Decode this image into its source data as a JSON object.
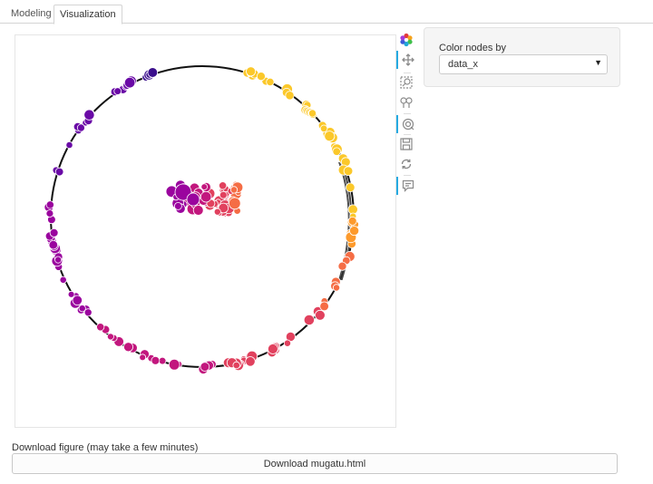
{
  "tabs": [
    {
      "label": "Modeling",
      "active": false
    },
    {
      "label": "Visualization",
      "active": true
    }
  ],
  "toolbar": {
    "tools": [
      {
        "icon": "bokeh-logo-icon",
        "active": false
      },
      {
        "icon": "pan-icon",
        "active": true
      },
      {
        "icon": "box-zoom-icon",
        "active": false
      },
      {
        "icon": "tap-icon",
        "active": false
      },
      {
        "icon": "wheel-zoom-icon",
        "active": true
      },
      {
        "icon": "save-icon",
        "active": false
      },
      {
        "icon": "reset-icon",
        "active": false
      },
      {
        "icon": "hover-icon",
        "active": true
      }
    ]
  },
  "widget": {
    "label": "Color nodes by",
    "selected": "data_x"
  },
  "download": {
    "label": "Download figure (may take a few minutes)",
    "button": "Download mugatu.html"
  },
  "colors": {
    "palette": [
      "#3b0f8c",
      "#6a0aa6",
      "#9a049e",
      "#c2177e",
      "#e1415e",
      "#f56d45",
      "#fd9a2c",
      "#fbc82a",
      "#f0f921"
    ],
    "edge": "#111111",
    "node_stroke": "#ffffff"
  }
}
